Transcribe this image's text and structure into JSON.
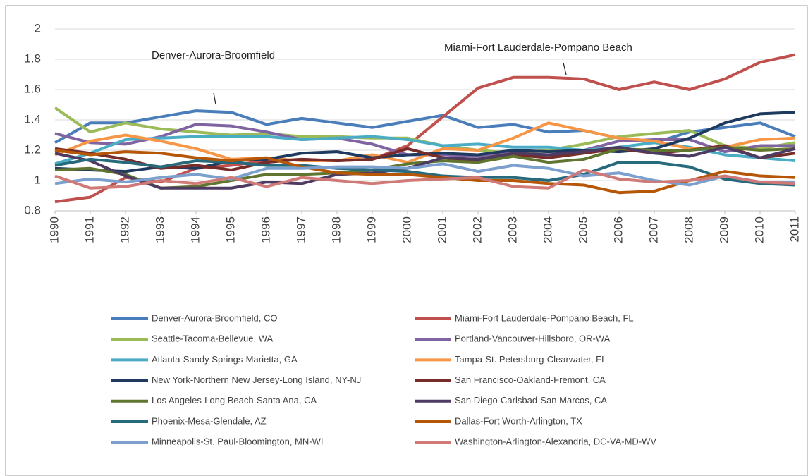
{
  "chart_data": {
    "type": "line",
    "categories": [
      "1990",
      "1991",
      "1992",
      "1993",
      "1994",
      "1995",
      "1996",
      "1997",
      "1998",
      "1999",
      "2000",
      "2001",
      "2002",
      "2003",
      "2004",
      "2005",
      "2006",
      "2007",
      "2008",
      "2009",
      "2010",
      "2011"
    ],
    "ylim": [
      0.8,
      2
    ],
    "yticks": [
      0.8,
      1,
      1.2,
      1.4,
      1.6,
      1.8,
      2
    ],
    "grid": true,
    "annotations": [
      "Denver-Aurora-Broomfield",
      "Miami-Fort Lauderdale-Pompano Beach"
    ],
    "series": [
      {
        "name": "Denver-Aurora-Broomfield, CO",
        "color": "#4a7ebb",
        "values": [
          1.25,
          1.38,
          1.38,
          1.42,
          1.46,
          1.45,
          1.37,
          1.41,
          1.38,
          1.35,
          1.39,
          1.43,
          1.35,
          1.37,
          1.32,
          1.33,
          1.28,
          1.25,
          1.32,
          1.35,
          1.38,
          1.29
        ]
      },
      {
        "name": "Miami-Fort Lauderdale-Pompano Beach, FL",
        "color": "#c0504d",
        "values": [
          0.86,
          0.89,
          1.02,
          0.99,
          1.08,
          1.1,
          1.13,
          1.14,
          1.13,
          1.14,
          1.23,
          1.42,
          1.61,
          1.68,
          1.68,
          1.67,
          1.6,
          1.65,
          1.6,
          1.67,
          1.78,
          1.83
        ]
      },
      {
        "name": "Seattle-Tacoma-Bellevue, WA",
        "color": "#9bbb59",
        "values": [
          1.48,
          1.32,
          1.38,
          1.34,
          1.32,
          1.3,
          1.31,
          1.29,
          1.29,
          1.28,
          1.28,
          1.23,
          1.2,
          1.18,
          1.2,
          1.24,
          1.29,
          1.31,
          1.33,
          1.23,
          1.21,
          1.25
        ]
      },
      {
        "name": "Portland-Vancouver-Hillsboro, OR-WA",
        "color": "#8064a2",
        "values": [
          1.31,
          1.25,
          1.24,
          1.29,
          1.37,
          1.36,
          1.32,
          1.27,
          1.28,
          1.24,
          1.17,
          1.17,
          1.16,
          1.18,
          1.15,
          1.2,
          1.26,
          1.27,
          1.27,
          1.19,
          1.23,
          1.23
        ]
      },
      {
        "name": "Atlanta-Sandy Springs-Marietta, GA",
        "color": "#4bacc6",
        "values": [
          1.11,
          1.18,
          1.27,
          1.28,
          1.29,
          1.29,
          1.29,
          1.27,
          1.28,
          1.29,
          1.27,
          1.23,
          1.24,
          1.22,
          1.22,
          1.2,
          1.22,
          1.25,
          1.22,
          1.17,
          1.15,
          1.13
        ]
      },
      {
        "name": "Tampa-St. Petersburg-Clearwater, FL",
        "color": "#f79646",
        "values": [
          1.17,
          1.26,
          1.3,
          1.26,
          1.21,
          1.14,
          1.15,
          1.13,
          1.13,
          1.17,
          1.12,
          1.21,
          1.2,
          1.28,
          1.38,
          1.33,
          1.28,
          1.26,
          1.21,
          1.22,
          1.27,
          1.28
        ]
      },
      {
        "name": "New York-Northern New Jersey-Long Island, NY-NJ",
        "color": "#1f3a5f",
        "values": [
          1.08,
          1.07,
          1.06,
          1.09,
          1.08,
          1.13,
          1.14,
          1.18,
          1.19,
          1.15,
          1.17,
          1.18,
          1.17,
          1.2,
          1.19,
          1.2,
          1.19,
          1.21,
          1.28,
          1.38,
          1.44,
          1.45
        ]
      },
      {
        "name": "San Francisco-Oakland-Fremont, CA",
        "color": "#772c2a",
        "values": [
          1.21,
          1.18,
          1.14,
          1.08,
          1.1,
          1.07,
          1.12,
          1.14,
          1.13,
          1.14,
          1.21,
          1.15,
          1.13,
          1.17,
          1.15,
          1.18,
          1.21,
          1.18,
          1.2,
          1.23,
          1.15,
          1.18
        ]
      },
      {
        "name": "Los Angeles-Long Beach-Santa Ana, CA",
        "color": "#5f7530",
        "values": [
          1.07,
          1.08,
          1.04,
          0.95,
          0.96,
          1.0,
          1.04,
          1.04,
          1.05,
          1.07,
          1.11,
          1.13,
          1.12,
          1.16,
          1.12,
          1.14,
          1.21,
          1.2,
          1.2,
          1.22,
          1.2,
          1.21
        ]
      },
      {
        "name": "San Diego-Carlsbad-San Marcos, CA",
        "color": "#4d3b62",
        "values": [
          1.18,
          1.13,
          1.03,
          0.95,
          0.95,
          0.95,
          0.99,
          0.98,
          1.04,
          1.05,
          1.08,
          1.15,
          1.14,
          1.18,
          1.17,
          1.19,
          1.22,
          1.18,
          1.16,
          1.22,
          1.15,
          1.21
        ]
      },
      {
        "name": "Phoenix-Mesa-Glendale, AZ",
        "color": "#276a7c",
        "values": [
          1.1,
          1.14,
          1.12,
          1.09,
          1.13,
          1.12,
          1.1,
          1.1,
          1.08,
          1.07,
          1.06,
          1.03,
          1.02,
          1.02,
          1.0,
          1.04,
          1.12,
          1.12,
          1.09,
          1.01,
          0.98,
          0.97
        ]
      },
      {
        "name": "Dallas-Fort Worth-Arlington, TX",
        "color": "#b65708",
        "values": [
          1.2,
          1.17,
          1.19,
          1.18,
          1.15,
          1.13,
          1.15,
          1.09,
          1.05,
          1.04,
          1.04,
          1.02,
          1.0,
          1.0,
          0.98,
          0.97,
          0.92,
          0.93,
          1.0,
          1.06,
          1.03,
          1.02
        ]
      },
      {
        "name": "Minneapolis-St. Paul-Bloomington, MN-WI",
        "color": "#7ba0cd",
        "values": [
          0.98,
          1.01,
          0.99,
          1.02,
          1.04,
          1.01,
          1.08,
          1.08,
          1.09,
          1.09,
          1.08,
          1.11,
          1.06,
          1.1,
          1.08,
          1.03,
          1.05,
          1.0,
          0.97,
          1.03,
          0.99,
          0.99
        ]
      },
      {
        "name": "Washington-Arlington-Alexandria, DC-VA-MD-WV",
        "color": "#d07a78",
        "values": [
          1.03,
          0.95,
          0.96,
          1.0,
          0.98,
          1.02,
          0.96,
          1.02,
          1.0,
          0.98,
          1.0,
          1.01,
          1.02,
          0.96,
          0.95,
          1.07,
          1.01,
          0.99,
          1.0,
          1.03,
          0.99,
          0.98
        ]
      }
    ]
  }
}
